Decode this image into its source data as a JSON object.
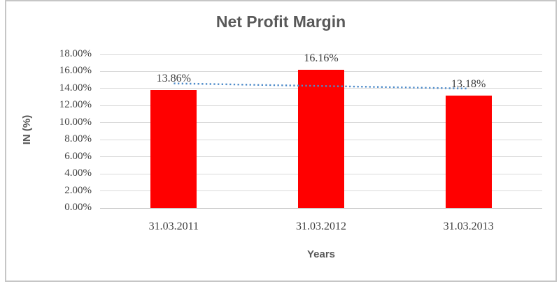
{
  "chart_data": {
    "type": "bar",
    "title": "Net Profit Margin",
    "categories": [
      "31.03.2011",
      "31.03.2012",
      "31.03.2013"
    ],
    "values": [
      13.86,
      16.16,
      13.18
    ],
    "data_labels": [
      "13.86%",
      "16.16%",
      "13.18%"
    ],
    "xlabel": "Years",
    "ylabel": "IN (%)",
    "ylim": [
      0,
      18
    ],
    "ytick_step": 2,
    "ytick_labels": [
      "0.00%",
      "2.00%",
      "4.00%",
      "6.00%",
      "8.00%",
      "10.00%",
      "12.00%",
      "14.00%",
      "16.00%",
      "18.00%"
    ],
    "grid": true,
    "legend": false,
    "bar_color": "#FF0000",
    "trendline": {
      "type": "linear",
      "style": "dotted",
      "color": "#4E8BC9",
      "start_pct": 14.6,
      "end_pct": 14.0
    },
    "colors": {
      "title_text": "#595959",
      "tick_text": "#404040",
      "gridline": "#D9D9D9",
      "axis_line": "#BFBFBF",
      "chart_border": "#C6C6C6"
    }
  }
}
